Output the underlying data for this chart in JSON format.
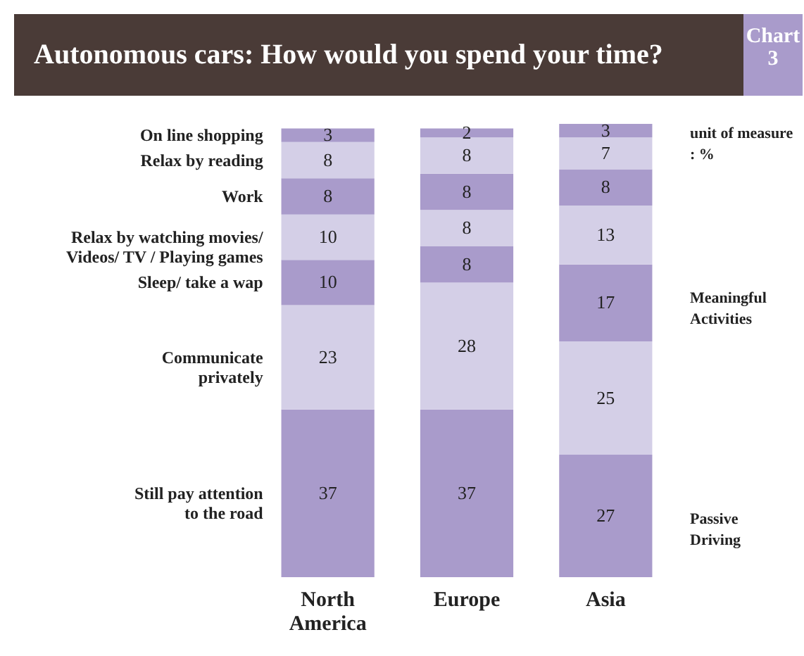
{
  "chart_data": {
    "type": "bar",
    "title": "Autonomous cars: How would you spend your time?",
    "stacked": true,
    "data_labels": true,
    "legend": false,
    "categories": [
      "North America",
      "Europe",
      "Asia"
    ],
    "series": [
      {
        "name": "Still pay attention\nto the road",
        "color": "#a99bcb",
        "values": [
          37,
          37,
          27
        ]
      },
      {
        "name": "Communicate\nprivately",
        "color": "#d4cfe7",
        "values": [
          23,
          28,
          25
        ]
      },
      {
        "name": "Sleep/ take a wap",
        "color": "#a99bcb",
        "values": [
          10,
          8,
          17
        ]
      },
      {
        "name": "Relax by watching movies/\nVideos/ TV / Playing games",
        "color": "#d4cfe7",
        "values": [
          10,
          8,
          13
        ]
      },
      {
        "name": "Work",
        "color": "#a99bcb",
        "values": [
          8,
          8,
          8
        ]
      },
      {
        "name": "Relax by reading",
        "color": "#d4cfe7",
        "values": [
          8,
          8,
          7
        ]
      },
      {
        "name": "On line shopping",
        "color": "#a99bcb",
        "values": [
          3,
          2,
          3
        ]
      }
    ],
    "annotations": [
      "Chart 3",
      "unit of measure : %",
      "Meaningful\nActivities",
      "Passive\nDriving"
    ]
  }
}
